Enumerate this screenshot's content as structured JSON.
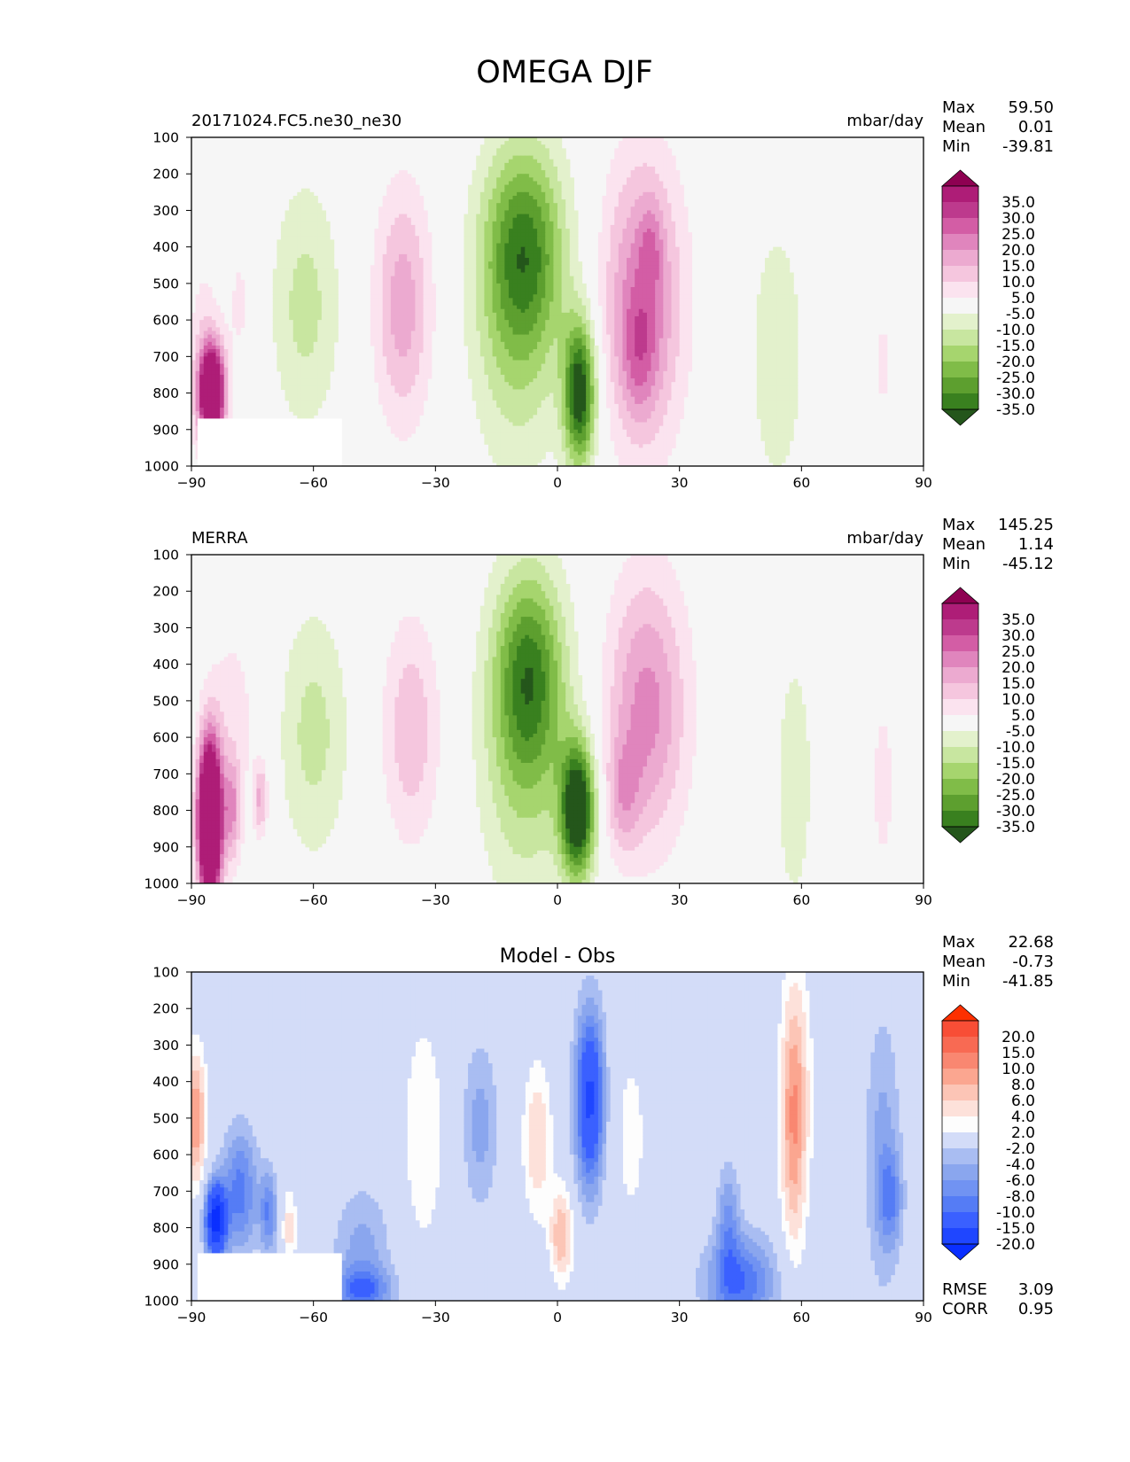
{
  "figure": {
    "title": "OMEGA DJF"
  },
  "colors": {
    "main_levels": [
      -35,
      -30,
      -25,
      -20,
      -15,
      -10,
      -5,
      5,
      10,
      15,
      20,
      25,
      30,
      35
    ],
    "main_colors": [
      "#24561b",
      "#39801f",
      "#5d9f2f",
      "#80bc48",
      "#a6d56e",
      "#c8e6a0",
      "#e3f1cc",
      "#f6f6f6",
      "#fbe3ef",
      "#f5c6de",
      "#ecaad0",
      "#e085bd",
      "#d35da5",
      "#bd3a8d",
      "#ae1d77",
      "#8e0152"
    ],
    "diff_levels": [
      -20,
      -15,
      -10,
      -8,
      -6,
      -4,
      -2,
      2,
      4,
      6,
      8,
      10,
      15,
      20
    ],
    "diff_colors": [
      "#0a2fff",
      "#1f46ff",
      "#3a60ff",
      "#557cf5",
      "#7193f2",
      "#8aa6ee",
      "#a9bdf2",
      "#d3dcf8",
      "#fdfdfd",
      "#fde1da",
      "#fcc5b6",
      "#fba690",
      "#f98771",
      "#f86a53",
      "#f84e36",
      "#fd3000"
    ]
  },
  "chart_data": [
    {
      "type": "contour",
      "title": "20171024.FC5.ne30_ne30",
      "units": "mbar/day",
      "stats": {
        "max": "59.50",
        "mean": "0.01",
        "min": "-39.81"
      },
      "stat_labels": [
        "Max",
        "Mean",
        "Min"
      ],
      "xlabel": "",
      "ylabel": "",
      "xlim": [
        -90,
        90
      ],
      "ylim": [
        1000,
        100
      ],
      "xticks": [
        "−90",
        "−60",
        "−30",
        "0",
        "30",
        "60",
        "90"
      ],
      "yticks": [
        "100",
        "200",
        "300",
        "400",
        "500",
        "600",
        "700",
        "800",
        "900",
        "1000"
      ],
      "colorbar_labels": [
        "35.0",
        "30.0",
        "25.0",
        "20.0",
        "15.0",
        "10.0",
        "5.0",
        "-5.0",
        "-10.0",
        "-15.0",
        "-20.0",
        "-25.0",
        "-30.0",
        "-35.0"
      ],
      "features": [
        {
          "lat": -85,
          "p": 800,
          "wlat": 2.2,
          "wp": 90,
          "amp": 60
        },
        {
          "lat": -87,
          "p": 700,
          "wlat": 3,
          "wp": 200,
          "amp": 8
        },
        {
          "lat": -78,
          "p": 550,
          "wlat": 2.5,
          "wp": 150,
          "amp": 6
        },
        {
          "lat": -62,
          "p": 560,
          "wlat": 6,
          "wp": 240,
          "amp": -12
        },
        {
          "lat": -38,
          "p": 560,
          "wlat": 5,
          "wp": 230,
          "amp": 18
        },
        {
          "lat": -8,
          "p": 400,
          "wlat": 7,
          "wp": 200,
          "amp": -24
        },
        {
          "lat": -10,
          "p": 600,
          "wlat": 8,
          "wp": 300,
          "amp": -14
        },
        {
          "lat": 5.5,
          "p": 800,
          "wlat": 2.8,
          "wp": 140,
          "amp": -40
        },
        {
          "lat": 21,
          "p": 550,
          "wlat": 7,
          "wp": 280,
          "amp": 24
        },
        {
          "lat": 20,
          "p": 700,
          "wlat": 3,
          "wp": 120,
          "amp": 10
        },
        {
          "lat": 23,
          "p": 400,
          "wlat": 2,
          "wp": 90,
          "amp": 8
        },
        {
          "lat": 54,
          "p": 700,
          "wlat": 5,
          "wp": 280,
          "amp": -9
        },
        {
          "lat": 80,
          "p": 720,
          "wlat": 1.5,
          "wp": 160,
          "amp": 6
        }
      ]
    },
    {
      "type": "contour",
      "title": "MERRA",
      "units": "mbar/day",
      "stats": {
        "max": "145.25",
        "mean": "1.14",
        "min": "-45.12"
      },
      "stat_labels": [
        "Max",
        "Mean",
        "Min"
      ],
      "xlabel": "",
      "ylabel": "",
      "xlim": [
        -90,
        90
      ],
      "ylim": [
        1000,
        100
      ],
      "xticks": [
        "−90",
        "−60",
        "−30",
        "0",
        "30",
        "60",
        "90"
      ],
      "yticks": [
        "100",
        "200",
        "300",
        "400",
        "500",
        "600",
        "700",
        "800",
        "900",
        "1000"
      ],
      "colorbar_labels": [
        "35.0",
        "30.0",
        "25.0",
        "20.0",
        "15.0",
        "10.0",
        "5.0",
        "-5.0",
        "-10.0",
        "-15.0",
        "-20.0",
        "-25.0",
        "-30.0",
        "-35.0"
      ],
      "features": [
        {
          "lat": -85.5,
          "p": 830,
          "wlat": 2,
          "wp": 150,
          "amp": 80
        },
        {
          "lat": -80,
          "p": 800,
          "wlat": 1.5,
          "wp": 100,
          "amp": 18
        },
        {
          "lat": -73,
          "p": 770,
          "wlat": 1.2,
          "wp": 70,
          "amp": 16
        },
        {
          "lat": -80,
          "p": 550,
          "wlat": 5,
          "wp": 220,
          "amp": 7
        },
        {
          "lat": -60,
          "p": 590,
          "wlat": 6,
          "wp": 240,
          "amp": -12
        },
        {
          "lat": -36,
          "p": 580,
          "wlat": 5,
          "wp": 220,
          "amp": 14
        },
        {
          "lat": -7,
          "p": 420,
          "wlat": 6,
          "wp": 200,
          "amp": -25
        },
        {
          "lat": -8,
          "p": 650,
          "wlat": 8,
          "wp": 300,
          "amp": -14
        },
        {
          "lat": 5,
          "p": 800,
          "wlat": 3,
          "wp": 130,
          "amp": -45
        },
        {
          "lat": 22,
          "p": 520,
          "wlat": 7,
          "wp": 260,
          "amp": 22
        },
        {
          "lat": 16,
          "p": 760,
          "wlat": 3,
          "wp": 110,
          "amp": 12
        },
        {
          "lat": 58,
          "p": 720,
          "wlat": 3.5,
          "wp": 260,
          "amp": -9
        },
        {
          "lat": 80,
          "p": 730,
          "wlat": 2,
          "wp": 170,
          "amp": 8
        },
        {
          "lat": 48,
          "p": 700,
          "wlat": 4,
          "wp": 260,
          "amp": 4
        }
      ]
    },
    {
      "type": "contour",
      "title": "Model - Obs",
      "units": "",
      "stats": {
        "max": "22.68",
        "mean": "-0.73",
        "min": "-41.85"
      },
      "stat_labels": [
        "Max",
        "Mean",
        "Min"
      ],
      "rmse_label": "RMSE",
      "rmse": "3.09",
      "corr_label": "CORR",
      "corr": "0.95",
      "xlabel": "",
      "ylabel": "",
      "xlim": [
        -90,
        90
      ],
      "ylim": [
        1000,
        100
      ],
      "xticks": [
        "−90",
        "−60",
        "−30",
        "0",
        "30",
        "60",
        "90"
      ],
      "yticks": [
        "100",
        "200",
        "300",
        "400",
        "500",
        "600",
        "700",
        "800",
        "900",
        "1000"
      ],
      "colorbar_labels": [
        "20.0",
        "15.0",
        "10.0",
        "8.0",
        "6.0",
        "4.0",
        "2.0",
        "-2.0",
        "-4.0",
        "-6.0",
        "-8.0",
        "-10.0",
        "-15.0",
        "-20.0"
      ],
      "features": [
        {
          "lat": -89,
          "p": 500,
          "wlat": 1.8,
          "wp": 130,
          "amp": 10
        },
        {
          "lat": -84,
          "p": 780,
          "wlat": 1.8,
          "wp": 70,
          "amp": -22
        },
        {
          "lat": -78,
          "p": 700,
          "wlat": 3,
          "wp": 120,
          "amp": -9
        },
        {
          "lat": -71,
          "p": 760,
          "wlat": 1.5,
          "wp": 80,
          "amp": -8
        },
        {
          "lat": -66,
          "p": 800,
          "wlat": 1.3,
          "wp": 80,
          "amp": 5
        },
        {
          "lat": -48,
          "p": 880,
          "wlat": 5,
          "wp": 130,
          "amp": -5
        },
        {
          "lat": -48,
          "p": 970,
          "wlat": 5,
          "wp": 40,
          "amp": -8
        },
        {
          "lat": -33,
          "p": 540,
          "wlat": 4,
          "wp": 250,
          "amp": 3.5
        },
        {
          "lat": -19,
          "p": 520,
          "wlat": 3,
          "wp": 160,
          "amp": -5
        },
        {
          "lat": -5,
          "p": 560,
          "wlat": 2.5,
          "wp": 150,
          "amp": 6
        },
        {
          "lat": 1,
          "p": 820,
          "wlat": 2,
          "wp": 90,
          "amp": 8
        },
        {
          "lat": 8,
          "p": 450,
          "wlat": 2.5,
          "wp": 170,
          "amp": -16
        },
        {
          "lat": 18,
          "p": 550,
          "wlat": 4,
          "wp": 250,
          "amp": 2.5
        },
        {
          "lat": 45,
          "p": 950,
          "wlat": 6,
          "wp": 90,
          "amp": -10
        },
        {
          "lat": 42,
          "p": 780,
          "wlat": 2,
          "wp": 110,
          "amp": -6
        },
        {
          "lat": 58,
          "p": 520,
          "wlat": 2.2,
          "wp": 250,
          "amp": 8
        },
        {
          "lat": 59,
          "p": 400,
          "wlat": 3,
          "wp": 250,
          "amp": 3
        },
        {
          "lat": 80,
          "p": 600,
          "wlat": 3,
          "wp": 260,
          "amp": -5
        },
        {
          "lat": 82,
          "p": 720,
          "wlat": 2,
          "wp": 90,
          "amp": -6
        }
      ]
    }
  ]
}
